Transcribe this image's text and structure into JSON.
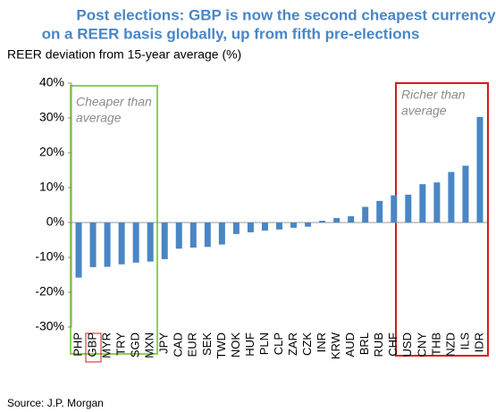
{
  "chart_data": {
    "type": "bar",
    "title": [
      "Post elections: GBP is now the second cheapest currency",
      "on a REER basis globally, up from fifth pre-elections"
    ],
    "subtitle": "REER deviation from 15-year average (%)",
    "source": "Source: J.P. Morgan",
    "annotations": [
      [
        "Cheaper than",
        "average"
      ],
      [
        "Richer than",
        "average"
      ]
    ],
    "categories": [
      "PHP",
      "GBP",
      "MYR",
      "TRY",
      "SGD",
      "MXN",
      "JPY",
      "CAD",
      "EUR",
      "SEK",
      "TWD",
      "NOK",
      "HUF",
      "PLN",
      "CLP",
      "ZAR",
      "CZK",
      "INR",
      "KRW",
      "AUD",
      "BRL",
      "RUB",
      "CHF",
      "USD",
      "CNY",
      "THB",
      "NZD",
      "ILS",
      "IDR"
    ],
    "values": [
      -15.8,
      -12.8,
      -12.7,
      -12,
      -11.5,
      -11.2,
      -10.5,
      -7.5,
      -7.2,
      -7,
      -6.3,
      -3.3,
      -2.8,
      -2.3,
      -2,
      -1.5,
      -1.2,
      0.5,
      1.3,
      1.8,
      4.5,
      6.2,
      7.8,
      8,
      11,
      11.5,
      14.5,
      16.3,
      30.3
    ],
    "color": "#4a86c5",
    "ylim": [
      -30,
      40
    ],
    "yticks": [
      {
        "value": 40,
        "label": "40%"
      },
      {
        "value": 30,
        "label": "30%"
      },
      {
        "value": 20,
        "label": "20%"
      },
      {
        "value": 10,
        "label": "10%"
      },
      {
        "value": 0,
        "label": "0%"
      },
      {
        "value": -10,
        "label": "-10%"
      },
      {
        "value": -20,
        "label": "-20%"
      },
      {
        "value": -30,
        "label": "-30%"
      }
    ]
  }
}
